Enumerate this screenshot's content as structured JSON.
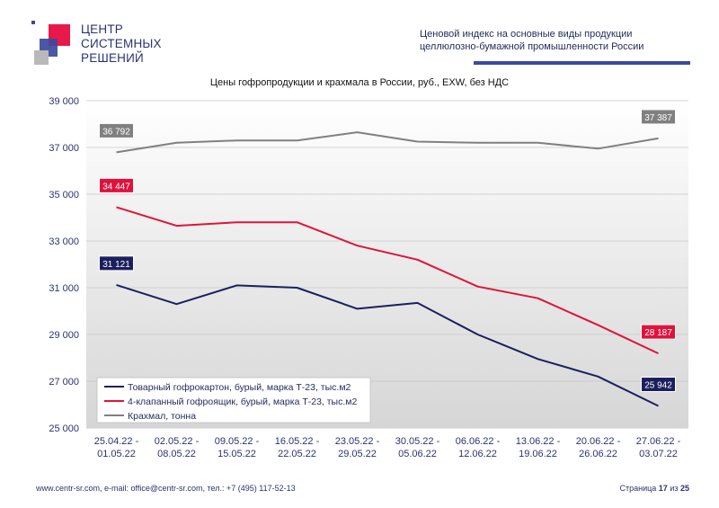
{
  "logo": {
    "line1": "ЦЕНТР",
    "line2": "СИСТЕМНЫХ",
    "line3": "РЕШЕНИЙ"
  },
  "header": {
    "title_line1": "Ценовой  индекс  на  основные виды продукции",
    "title_line2": "целлюлозно-бумажной промышленности России"
  },
  "footer": {
    "contacts": "www.centr-sr.com, e-mail: office@centr-sr.com, тел.: +7 (495) 117-52-13",
    "page_word": "Страница",
    "page_current": "17",
    "page_of": "из",
    "page_total": "25"
  },
  "chart_data": {
    "type": "line",
    "title": "Цены гофропродукции и крахмала в России, руб., EXW, без НДС",
    "xlabel": "",
    "ylabel": "",
    "ylim": [
      25000,
      39000
    ],
    "yticks": [
      25000,
      27000,
      29000,
      31000,
      33000,
      35000,
      37000,
      39000
    ],
    "ytick_labels": [
      "25 000",
      "27 000",
      "29 000",
      "31 000",
      "33 000",
      "35 000",
      "37 000",
      "39 000"
    ],
    "grid": true,
    "legend_position": "bottom-left",
    "categories": [
      [
        "25.04.22 -",
        "01.05.22"
      ],
      [
        "02.05.22 -",
        "08.05.22"
      ],
      [
        "09.05.22 -",
        "15.05.22"
      ],
      [
        "16.05.22 -",
        "22.05.22"
      ],
      [
        "23.05.22 -",
        "29.05.22"
      ],
      [
        "30.05.22 -",
        "05.06.22"
      ],
      [
        "06.06.22 -",
        "12.06.22"
      ],
      [
        "13.06.22 -",
        "19.06.22"
      ],
      [
        "20.06.22 -",
        "26.06.22"
      ],
      [
        "27.06.22 -",
        "03.07.22"
      ]
    ],
    "series": [
      {
        "name": "Товарный гофрокартон, бурый, марка Т-23, тыс.м2",
        "color": "#1c1f5e",
        "values": [
          31121,
          30300,
          31100,
          31000,
          30100,
          30350,
          29000,
          27950,
          27200,
          25942
        ],
        "labels": [
          {
            "index": 0,
            "text": "31 121"
          },
          {
            "index": 9,
            "text": "25 942"
          }
        ]
      },
      {
        "name": "4-клапанный гофроящик, бурый, марка Т-23, тыс.м2",
        "color": "#e0123c",
        "values": [
          34447,
          33650,
          33800,
          33800,
          32800,
          32200,
          31050,
          30550,
          29400,
          28187
        ],
        "labels": [
          {
            "index": 0,
            "text": "34 447"
          },
          {
            "index": 9,
            "text": "28 187"
          }
        ]
      },
      {
        "name": "Крахмал, тонна",
        "color": "#808080",
        "values": [
          36792,
          37200,
          37300,
          37300,
          37650,
          37250,
          37200,
          37200,
          36950,
          37387
        ],
        "labels": [
          {
            "index": 0,
            "text": "36 792"
          },
          {
            "index": 9,
            "text": "37 387"
          }
        ]
      }
    ]
  }
}
